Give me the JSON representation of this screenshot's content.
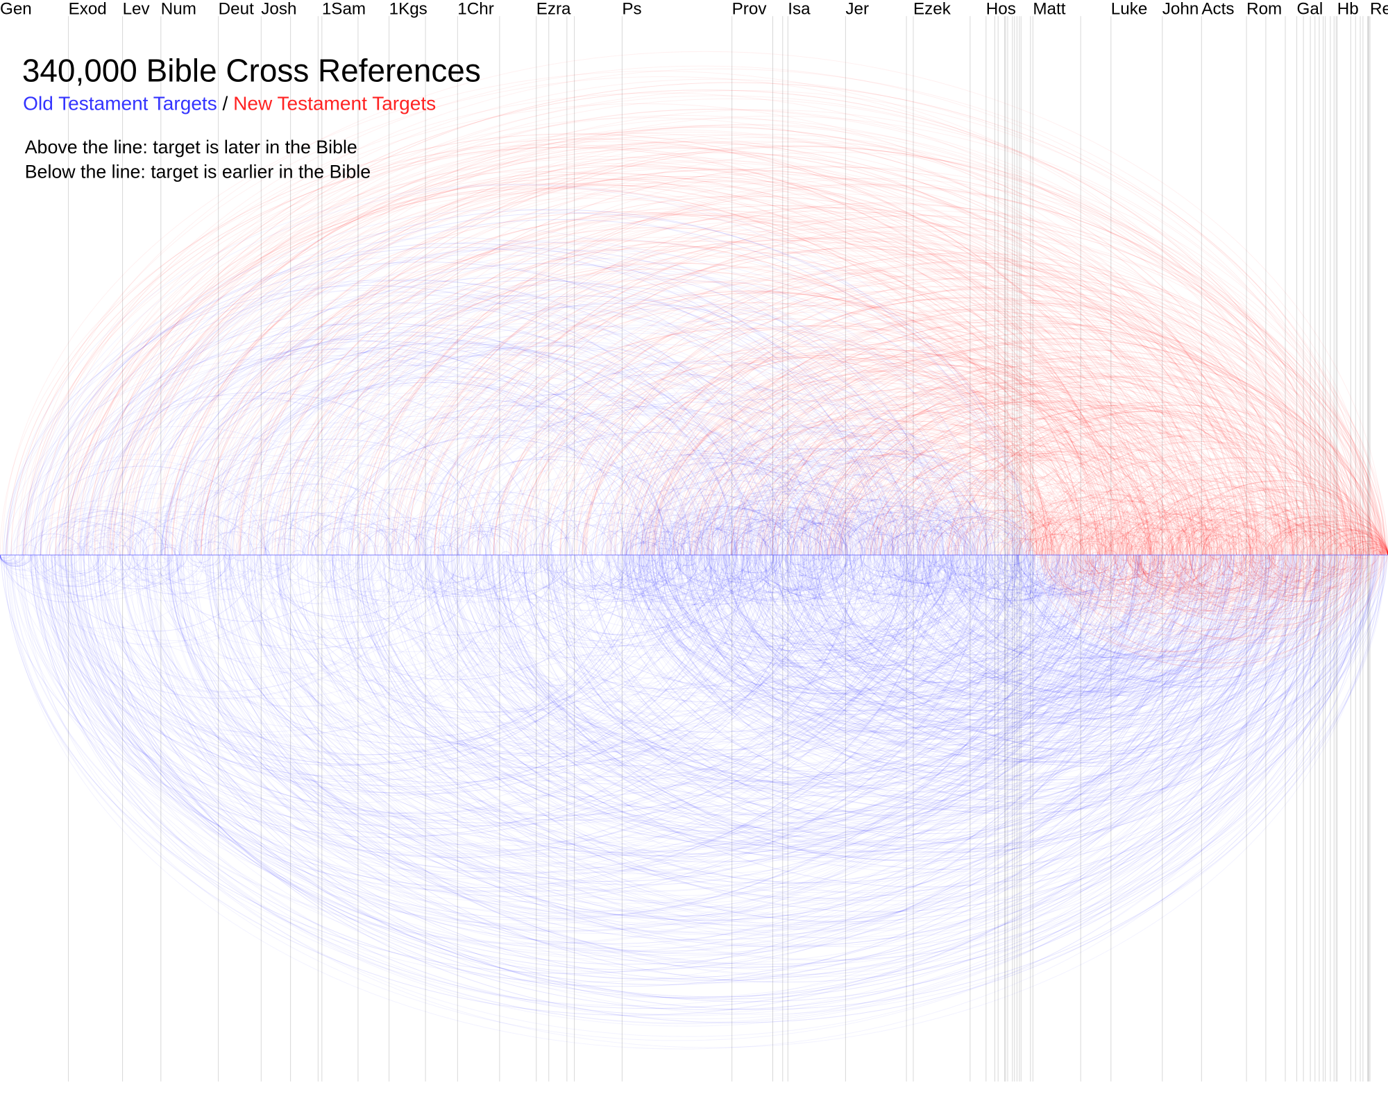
{
  "title": "340,000 Bible Cross References",
  "legend": {
    "old_testament": "Old Testament Targets",
    "separator": "/",
    "new_testament": "New Testament Targets",
    "old_color": "#3333ff",
    "new_color": "#ff2222"
  },
  "notes": {
    "above": "Above the line: target is later in the Bible",
    "below": "Below the line: target is earlier in the Bible"
  },
  "chart_data": {
    "type": "arc",
    "title": "340,000 Bible Cross References",
    "book_labels": [
      "Gen",
      "Exod",
      "Lev",
      "Num",
      "Deut",
      "Josh",
      "1Sam",
      "1Kgs",
      "1Chr",
      "Ezra",
      "Ps",
      "Prov",
      "Isa",
      "Jer",
      "Ezek",
      "Hos",
      "Matt",
      "Luke",
      "John",
      "Acts",
      "Rom",
      "Gal",
      "Hb",
      "Re"
    ],
    "series": [
      {
        "name": "Old Testament Targets",
        "color": "#0000ff"
      },
      {
        "name": "New Testament Targets",
        "color": "#ff0000"
      }
    ]
  }
}
